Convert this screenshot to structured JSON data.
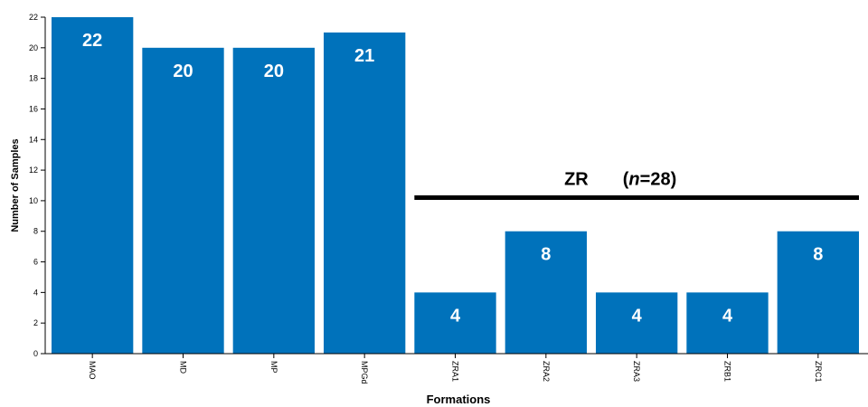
{
  "chart_data": {
    "type": "bar",
    "categories": [
      "MAO",
      "MD",
      "MP",
      "MPGd",
      "ZRA1",
      "ZRA2",
      "ZRA3",
      "ZRB1",
      "ZRC1"
    ],
    "values": [
      22,
      20,
      20,
      21,
      4,
      8,
      4,
      4,
      8
    ],
    "data_labels": [
      "22",
      "20",
      "20",
      "21",
      "4",
      "8",
      "4",
      "4",
      "8"
    ],
    "title": "",
    "xlabel": "Formations",
    "ylabel": "Number of Samples",
    "ylim": [
      0,
      22
    ],
    "yticks": [
      0,
      2,
      4,
      6,
      8,
      10,
      12,
      14,
      16,
      18,
      20,
      22
    ],
    "grid": false,
    "bar_color": "#0072BB",
    "annotation": {
      "label": "ZR",
      "n_prefix": "(",
      "n_symbol": "n",
      "n_value": "=28)",
      "covers": [
        "ZRA1",
        "ZRA2",
        "ZRA3",
        "ZRB1",
        "ZRC1"
      ],
      "y": 10.2
    }
  }
}
